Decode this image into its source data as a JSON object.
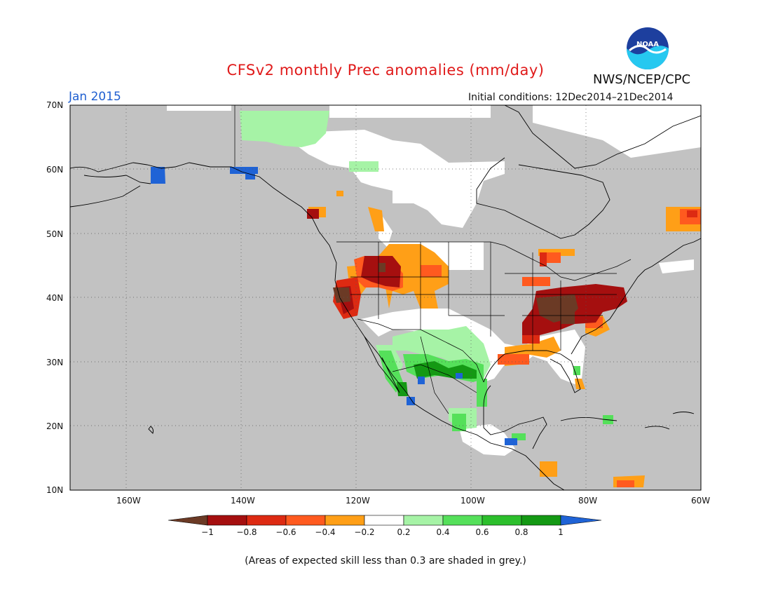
{
  "title": "CFSv2 monthly Prec anomalies (mm/day)",
  "valid_month": "Jan 2015",
  "agency": "NWS/NCEP/CPC",
  "logo_text": "NOAA",
  "initial_conditions": "Initial conditions: 12Dec2014–21Dec2014",
  "footnote": "(Areas of expected skill less than 0.3 are shaded in grey.)",
  "lat_ticks": [
    "70N",
    "60N",
    "50N",
    "40N",
    "30N",
    "20N",
    "10N"
  ],
  "lon_ticks": [
    "160W",
    "140W",
    "120W",
    "100W",
    "80W",
    "60W"
  ],
  "colorbar": {
    "labels": [
      "−1",
      "−0.8",
      "−0.6",
      "−0.4",
      "−0.2",
      "0.2",
      "0.4",
      "0.6",
      "0.8",
      "1"
    ],
    "colors": {
      "lt_m1": "#6b3a25",
      "m1_m08": "#a50f0f",
      "m08_m06": "#dd2a12",
      "m06_m04": "#ff5a1f",
      "m04_m02": "#ff9f17",
      "m02_02": "#ffffff",
      "p02_04": "#a6f3a6",
      "p04_06": "#55e05a",
      "p06_08": "#2cbf2c",
      "p08_1": "#149914",
      "gt_1": "#1f63d6"
    }
  },
  "colors": {
    "skill_mask_grey": "#c2c2c2"
  }
}
